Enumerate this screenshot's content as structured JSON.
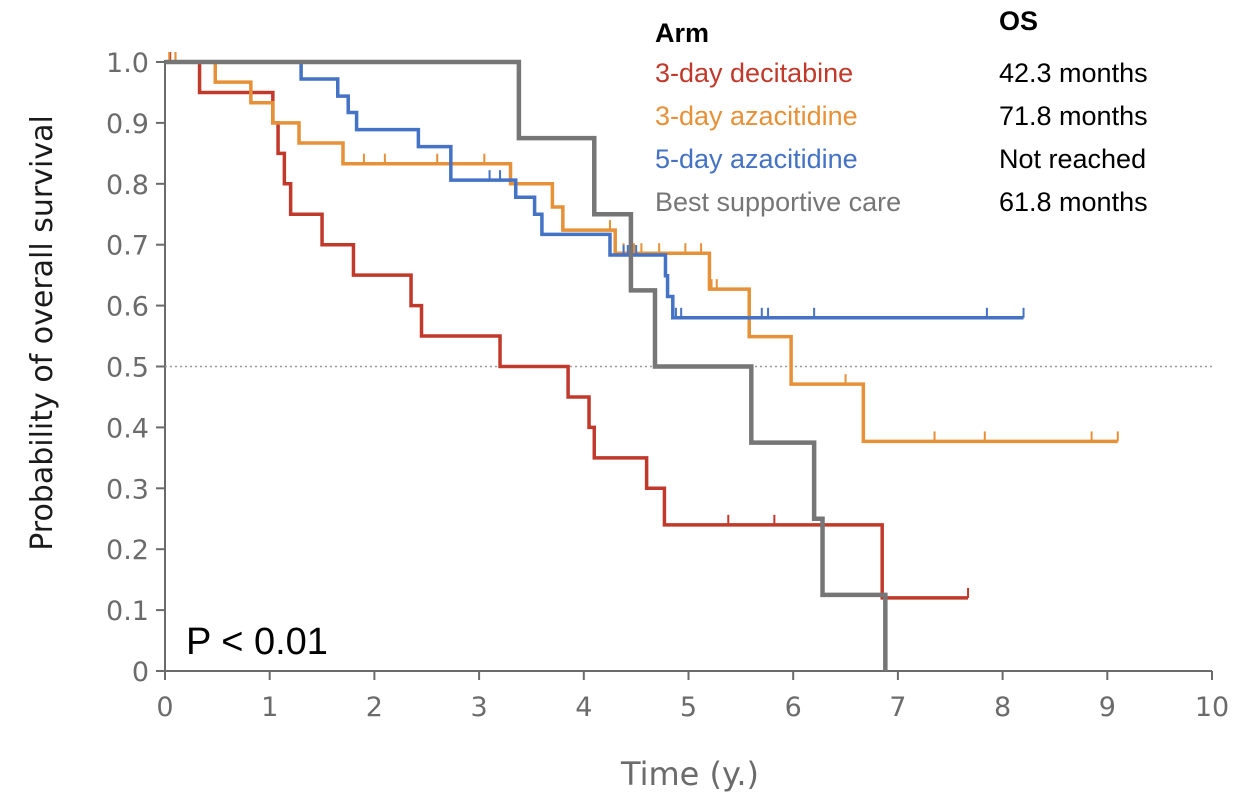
{
  "chart_data": {
    "type": "line",
    "subtype": "kaplan-meier",
    "xlabel": "Time (y.)",
    "ylabel": "Probability of overall survival",
    "xlim": [
      0,
      10
    ],
    "ylim": [
      0,
      1.0
    ],
    "x_ticks": [
      "0",
      "1",
      "2",
      "3",
      "4",
      "5",
      "6",
      "7",
      "8",
      "9",
      "10"
    ],
    "y_ticks": [
      "0",
      "0.1",
      "0.2",
      "0.3",
      "0.4",
      "0.5",
      "0.6",
      "0.7",
      "0.8",
      "0.9",
      "1.0"
    ],
    "grid": false,
    "reference_line_y": 0.5,
    "annotation": "P < 0.01",
    "legend": {
      "header_arm": "Arm",
      "header_os": "OS",
      "position": "top-right"
    },
    "series": [
      {
        "name": "3-day decitabine",
        "os": "42.3 months",
        "color": "#c0392b",
        "steps": [
          [
            0,
            1.0
          ],
          [
            0.33,
            0.95
          ],
          [
            1.03,
            0.9
          ],
          [
            1.08,
            0.85
          ],
          [
            1.14,
            0.8
          ],
          [
            1.2,
            0.75
          ],
          [
            1.5,
            0.7
          ],
          [
            1.8,
            0.65
          ],
          [
            2.35,
            0.6
          ],
          [
            2.45,
            0.55
          ],
          [
            3.2,
            0.5
          ],
          [
            3.85,
            0.45
          ],
          [
            4.05,
            0.4
          ],
          [
            4.1,
            0.35
          ],
          [
            4.6,
            0.3
          ],
          [
            4.77,
            0.24
          ],
          [
            6.85,
            0.12
          ]
        ],
        "end_x": 7.67,
        "censor_x": [
          0.05,
          0.1,
          5.38,
          5.82,
          7.67
        ]
      },
      {
        "name": "3-day azacitidine",
        "os": "71.8 months",
        "color": "#e69138",
        "steps": [
          [
            0,
            1.0
          ],
          [
            0.48,
            0.967
          ],
          [
            0.82,
            0.933
          ],
          [
            1.03,
            0.9
          ],
          [
            1.28,
            0.867
          ],
          [
            1.7,
            0.833
          ],
          [
            3.3,
            0.8
          ],
          [
            3.7,
            0.762
          ],
          [
            3.8,
            0.724
          ],
          [
            4.3,
            0.686
          ],
          [
            5.2,
            0.627
          ],
          [
            5.58,
            0.549
          ],
          [
            5.98,
            0.471
          ],
          [
            6.67,
            0.377
          ]
        ],
        "end_x": 9.1,
        "censor_x": [
          0.04,
          0.1,
          1.9,
          2.1,
          2.6,
          3.05,
          4.25,
          4.38,
          4.48,
          4.55,
          4.72,
          4.97,
          5.12,
          5.22,
          5.27,
          6.5,
          7.35,
          7.83,
          8.85,
          9.1
        ]
      },
      {
        "name": "5-day azacitidine",
        "os": "Not reached",
        "color": "#4472c4",
        "steps": [
          [
            0,
            1.0
          ],
          [
            1.3,
            0.972
          ],
          [
            1.65,
            0.944
          ],
          [
            1.75,
            0.917
          ],
          [
            1.83,
            0.889
          ],
          [
            2.42,
            0.861
          ],
          [
            2.73,
            0.806
          ],
          [
            3.35,
            0.778
          ],
          [
            3.53,
            0.75
          ],
          [
            3.6,
            0.717
          ],
          [
            4.25,
            0.683
          ],
          [
            4.3,
            0.683
          ],
          [
            4.78,
            0.649
          ],
          [
            4.8,
            0.615
          ],
          [
            4.85,
            0.58
          ]
        ],
        "end_x": 8.2,
        "censor_x": [
          3.1,
          3.2,
          4.38,
          4.42,
          4.5,
          4.88,
          4.93,
          5.7,
          5.76,
          6.2,
          7.85,
          8.2
        ]
      },
      {
        "name": "Best supportive care",
        "os": "61.8 months",
        "color": "#767676",
        "steps": [
          [
            0,
            1.0
          ],
          [
            3.38,
            0.875
          ],
          [
            4.1,
            0.75
          ],
          [
            4.45,
            0.625
          ],
          [
            4.68,
            0.5
          ],
          [
            5.6,
            0.375
          ],
          [
            6.2,
            0.25
          ],
          [
            6.28,
            0.125
          ],
          [
            6.88,
            0.0
          ]
        ],
        "end_x": 6.88,
        "censor_x": []
      }
    ]
  }
}
